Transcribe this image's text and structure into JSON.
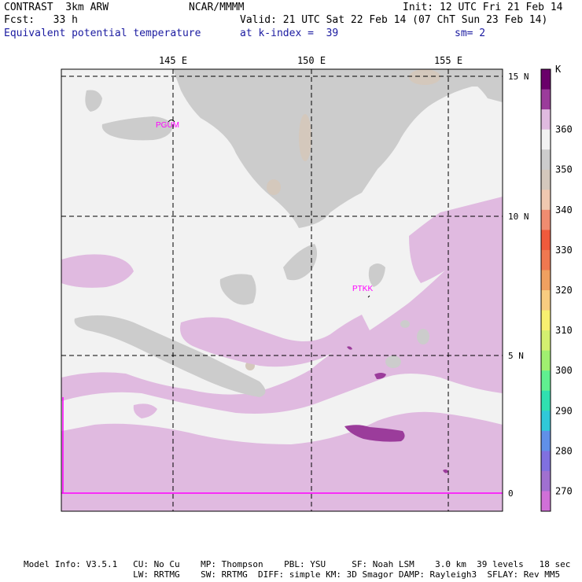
{
  "header": {
    "left_line1": "CONTRAST  3km ARW",
    "left_line2": "Fcst:   33 h",
    "center_line1": "NCAR/MMMM",
    "right_line1": "Init: 12 UTC Fri 21 Feb 14",
    "valid_line": "Valid: 21 UTC Sat 22 Feb 14 (07 ChT Sun 23 Feb 14)",
    "field_name": "Equivalent potential temperature",
    "level": "at k-index =  39",
    "smoothing": "sm= 2"
  },
  "axes": {
    "lon_labels": [
      "145 E",
      "150 E",
      "155 E"
    ],
    "lat_labels": [
      "15 N",
      "10 N",
      "5 N",
      "0"
    ]
  },
  "stations": [
    "PGUM",
    "PTKK"
  ],
  "colorbar": {
    "unit": "K",
    "labels": [
      "360",
      "350",
      "340",
      "330",
      "320",
      "310",
      "300",
      "290",
      "280",
      "270"
    ],
    "colors": [
      "#6a006a",
      "#9b3c9b",
      "#e0bae0",
      "#f2f2f2",
      "#cccccc",
      "#d4c8bc",
      "#f0c8b0",
      "#f08c70",
      "#f05a3c",
      "#f07850",
      "#f0a060",
      "#f8cc80",
      "#f8f070",
      "#d4f070",
      "#a0f070",
      "#60f090",
      "#30e0b0",
      "#30c8d8",
      "#6090e8",
      "#8070e0",
      "#a070d0",
      "#d070d8"
    ],
    "value_colors": {
      "light_violet": "#e0bae0",
      "light_gray": "#f2f2f2",
      "gray": "#cccccc",
      "tan": "#d4c8bc",
      "purple": "#9b3c9b",
      "magenta": "#ff00ff"
    }
  },
  "footer": {
    "line1": "Model Info: V3.5.1   CU: No Cu    MP: Thompson    PBL: YSU     SF: Noah LSM    3.0 km  39 levels   18 sec",
    "line2": "                     LW: RRTMG    SW: RRTMG  DIFF: simple KM: 3D Smagor DAMP: Rayleigh3  SFLAY: Rev MM5"
  }
}
